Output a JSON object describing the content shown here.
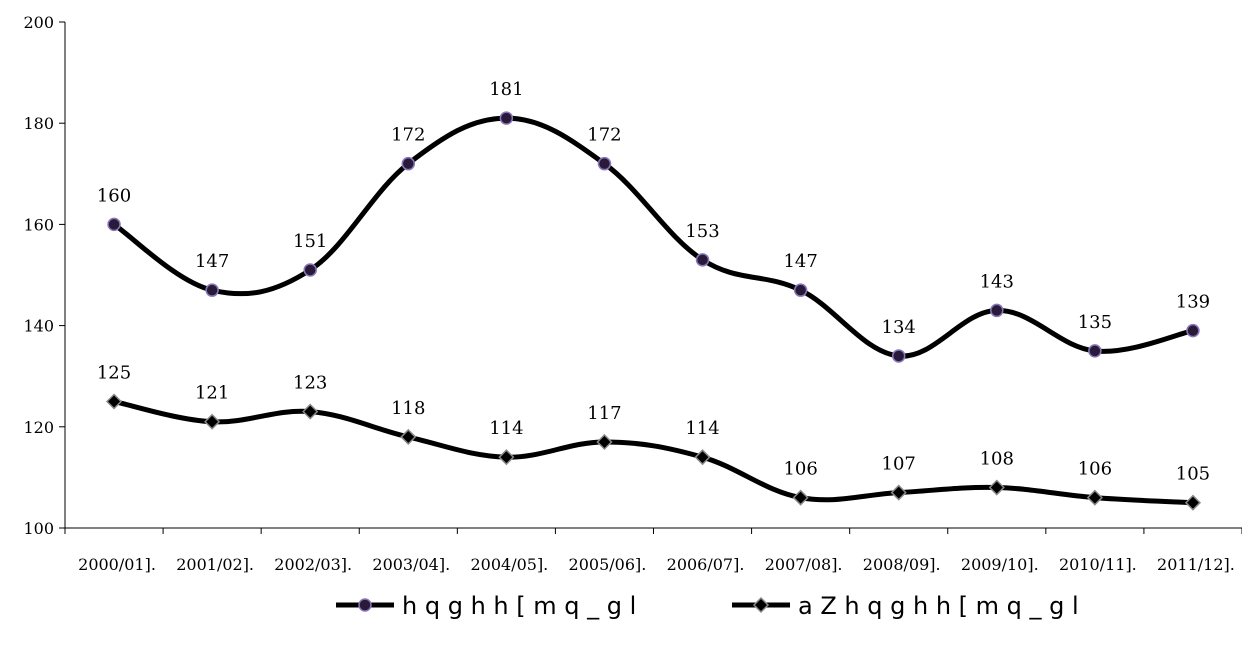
{
  "chart_data": {
    "type": "line",
    "categories": [
      "2000/01].",
      "2001/02].",
      "2002/03].",
      "2003/04].",
      "2004/05].",
      "2005/06].",
      "2006/07].",
      "2007/08].",
      "2008/09].",
      "2009/10].",
      "2010/11].",
      "2011/12]."
    ],
    "series": [
      {
        "name": "h q g h h [ m q _ g l",
        "marker": "circle",
        "color": "#000000",
        "marker_fill": "#2a1a3a",
        "values": [
          160,
          147,
          151,
          172,
          181,
          172,
          153,
          147,
          134,
          143,
          135,
          139
        ]
      },
      {
        "name": "a Z h q g h h [ m q _ g l",
        "marker": "diamond",
        "color": "#000000",
        "marker_fill": "#000000",
        "values": [
          125,
          121,
          123,
          118,
          114,
          117,
          114,
          106,
          107,
          108,
          106,
          105
        ]
      }
    ],
    "ylim": [
      100,
      200
    ],
    "yticks": [
      100,
      120,
      140,
      160,
      180,
      200
    ],
    "title": "",
    "xlabel": "",
    "ylabel": "",
    "grid": false,
    "legend": "bottom",
    "smooth": true
  }
}
